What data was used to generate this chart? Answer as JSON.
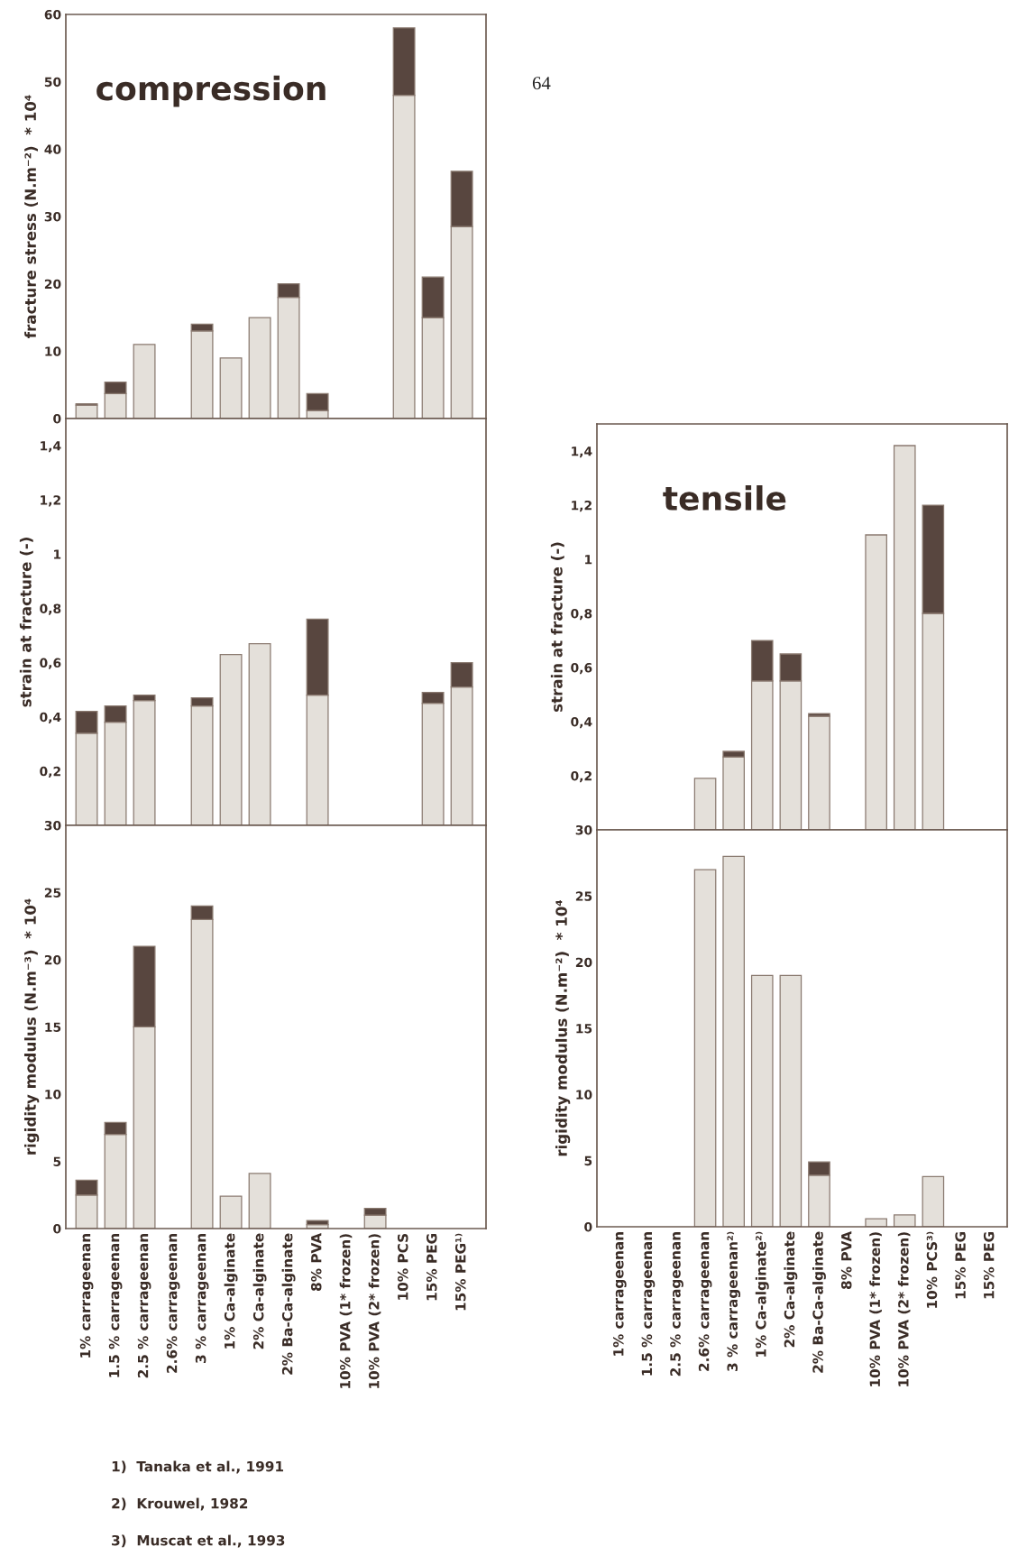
{
  "chart_data": [
    {
      "type": "bar",
      "stacked": true,
      "ylabel": "fracture stress (N.m⁻²)  * 10⁴",
      "tick_labels": "y",
      "categories": [
        null,
        null,
        null,
        null,
        null,
        null,
        null,
        null,
        null,
        null,
        null,
        null,
        null,
        null
      ],
      "series": [
        {
          "color": "#e4e0da",
          "values": [
            2.0,
            3.7,
            11,
            null,
            13,
            9,
            15,
            18,
            1.2,
            null,
            null,
            48,
            15,
            28.5
          ]
        },
        {
          "color": "#58463f",
          "values": [
            0.2,
            1.7,
            null,
            null,
            1,
            null,
            null,
            2,
            2.5,
            null,
            null,
            10,
            6,
            8.2
          ]
        }
      ],
      "ylim": [
        0,
        60
      ],
      "yticks": [
        0,
        10,
        20,
        30,
        40,
        50,
        60
      ],
      "annotations": [
        "compression",
        "64"
      ]
    },
    {
      "type": "bar",
      "stacked": true,
      "ylabel": "strain at fracture (-)",
      "tick_labels": "y",
      "categories": [
        null,
        null,
        null,
        null,
        null,
        null,
        null,
        null,
        null,
        null,
        null,
        null,
        null,
        null
      ],
      "series": [
        {
          "color": "#e4e0da",
          "values": [
            0.34,
            0.38,
            0.46,
            null,
            0.44,
            0.63,
            0.67,
            null,
            0.48,
            null,
            null,
            null,
            0.45,
            0.51
          ]
        },
        {
          "color": "#58463f",
          "values": [
            0.08,
            0.06,
            0.02,
            null,
            0.03,
            null,
            null,
            null,
            0.28,
            null,
            null,
            null,
            0.04,
            0.09
          ]
        }
      ],
      "ylim": [
        0,
        1.5
      ],
      "yticks": [
        {
          "value": 0.2,
          "label": "0,2"
        },
        {
          "value": 0.4,
          "label": "0,4"
        },
        {
          "value": 0.6,
          "label": "0,6"
        },
        {
          "value": 0.8,
          "label": "0,8"
        },
        1,
        {
          "value": 1.2,
          "label": "1,2"
        },
        {
          "value": 1.4,
          "label": "1,4"
        }
      ]
    },
    {
      "type": "bar",
      "stacked": true,
      "ylabel": "rigidity modulus (N.m⁻³)  * 10⁴",
      "categories": [
        "1% carrageenan",
        "1.5 % carrageenan",
        "2.5 % carrageenan",
        "2.6% carrageenan",
        "3 % carrageenan",
        "1% Ca-alginate",
        "2% Ca-alginate",
        "2% Ba-Ca-alginate",
        "8% PVA",
        "10% PVA (1* frozen)",
        "10% PVA (2* frozen)",
        "10% PCS",
        "15% PEG",
        "15% PEG¹⁾"
      ],
      "series": [
        {
          "color": "#e4e0da",
          "values": [
            2.5,
            7,
            15,
            null,
            23,
            2.4,
            4.1,
            null,
            0.3,
            null,
            1.0,
            null,
            null,
            null
          ]
        },
        {
          "color": "#58463f",
          "values": [
            1.1,
            0.9,
            6,
            null,
            1,
            null,
            null,
            null,
            0.3,
            null,
            0.5,
            null,
            null,
            null
          ]
        }
      ],
      "ylim": [
        0,
        30
      ],
      "yticks": [
        0,
        5,
        10,
        15,
        20,
        25,
        30
      ],
      "annotations": [
        "1)  Tanaka et al., 1991",
        "2)  Krouwel, 1982",
        "3)  Muscat et al., 1993"
      ]
    },
    {
      "type": "bar",
      "stacked": true,
      "ylabel": "strain at fracture (-)",
      "tick_labels": "y",
      "categories": [
        null,
        null,
        null,
        null,
        null,
        null,
        null,
        null,
        null,
        null,
        null,
        null,
        null,
        null
      ],
      "series": [
        {
          "color": "#e4e0da",
          "values": [
            null,
            null,
            null,
            0.19,
            0.27,
            0.55,
            0.55,
            0.42,
            null,
            1.09,
            1.42,
            0.8,
            null,
            null
          ]
        },
        {
          "color": "#58463f",
          "values": [
            null,
            null,
            null,
            null,
            0.02,
            0.15,
            0.1,
            0.01,
            null,
            null,
            null,
            0.4,
            null,
            null
          ]
        }
      ],
      "ylim": [
        0,
        1.5
      ],
      "yticks": [
        {
          "value": 0.2,
          "label": "0,2"
        },
        {
          "value": 0.4,
          "label": "0,4"
        },
        {
          "value": 0.6,
          "label": "0,6"
        },
        {
          "value": 0.8,
          "label": "0,8"
        },
        1,
        {
          "value": 1.2,
          "label": "1,2"
        },
        {
          "value": 1.4,
          "label": "1,4"
        }
      ],
      "annotations": [
        "tensile"
      ]
    },
    {
      "type": "bar",
      "stacked": true,
      "ylabel": "rigidity modulus (N.m⁻²)  * 10⁴",
      "categories": [
        "1% carrageenan",
        "1.5 % carrageenan",
        "2.5 % carrageenan",
        "2.6% carrageenan",
        "3 % carrageenan²⁾",
        "1% Ca-alginate²⁾",
        "2% Ca-alginate",
        "2% Ba-Ca-alginate",
        "8% PVA",
        "10% PVA (1* frozen)",
        "10% PVA (2* frozen)",
        "10% PCS³⁾",
        "15% PEG",
        "15% PEG"
      ],
      "series": [
        {
          "color": "#e4e0da",
          "values": [
            null,
            null,
            null,
            27,
            28,
            19,
            19,
            3.9,
            null,
            0.6,
            0.9,
            3.8,
            null,
            null
          ]
        },
        {
          "color": "#58463f",
          "values": [
            null,
            null,
            null,
            null,
            null,
            null,
            null,
            1.0,
            null,
            null,
            null,
            null,
            null,
            null
          ]
        }
      ],
      "ylim": [
        0,
        30
      ],
      "yticks": [
        0,
        5,
        10,
        15,
        20,
        25,
        30
      ]
    }
  ]
}
